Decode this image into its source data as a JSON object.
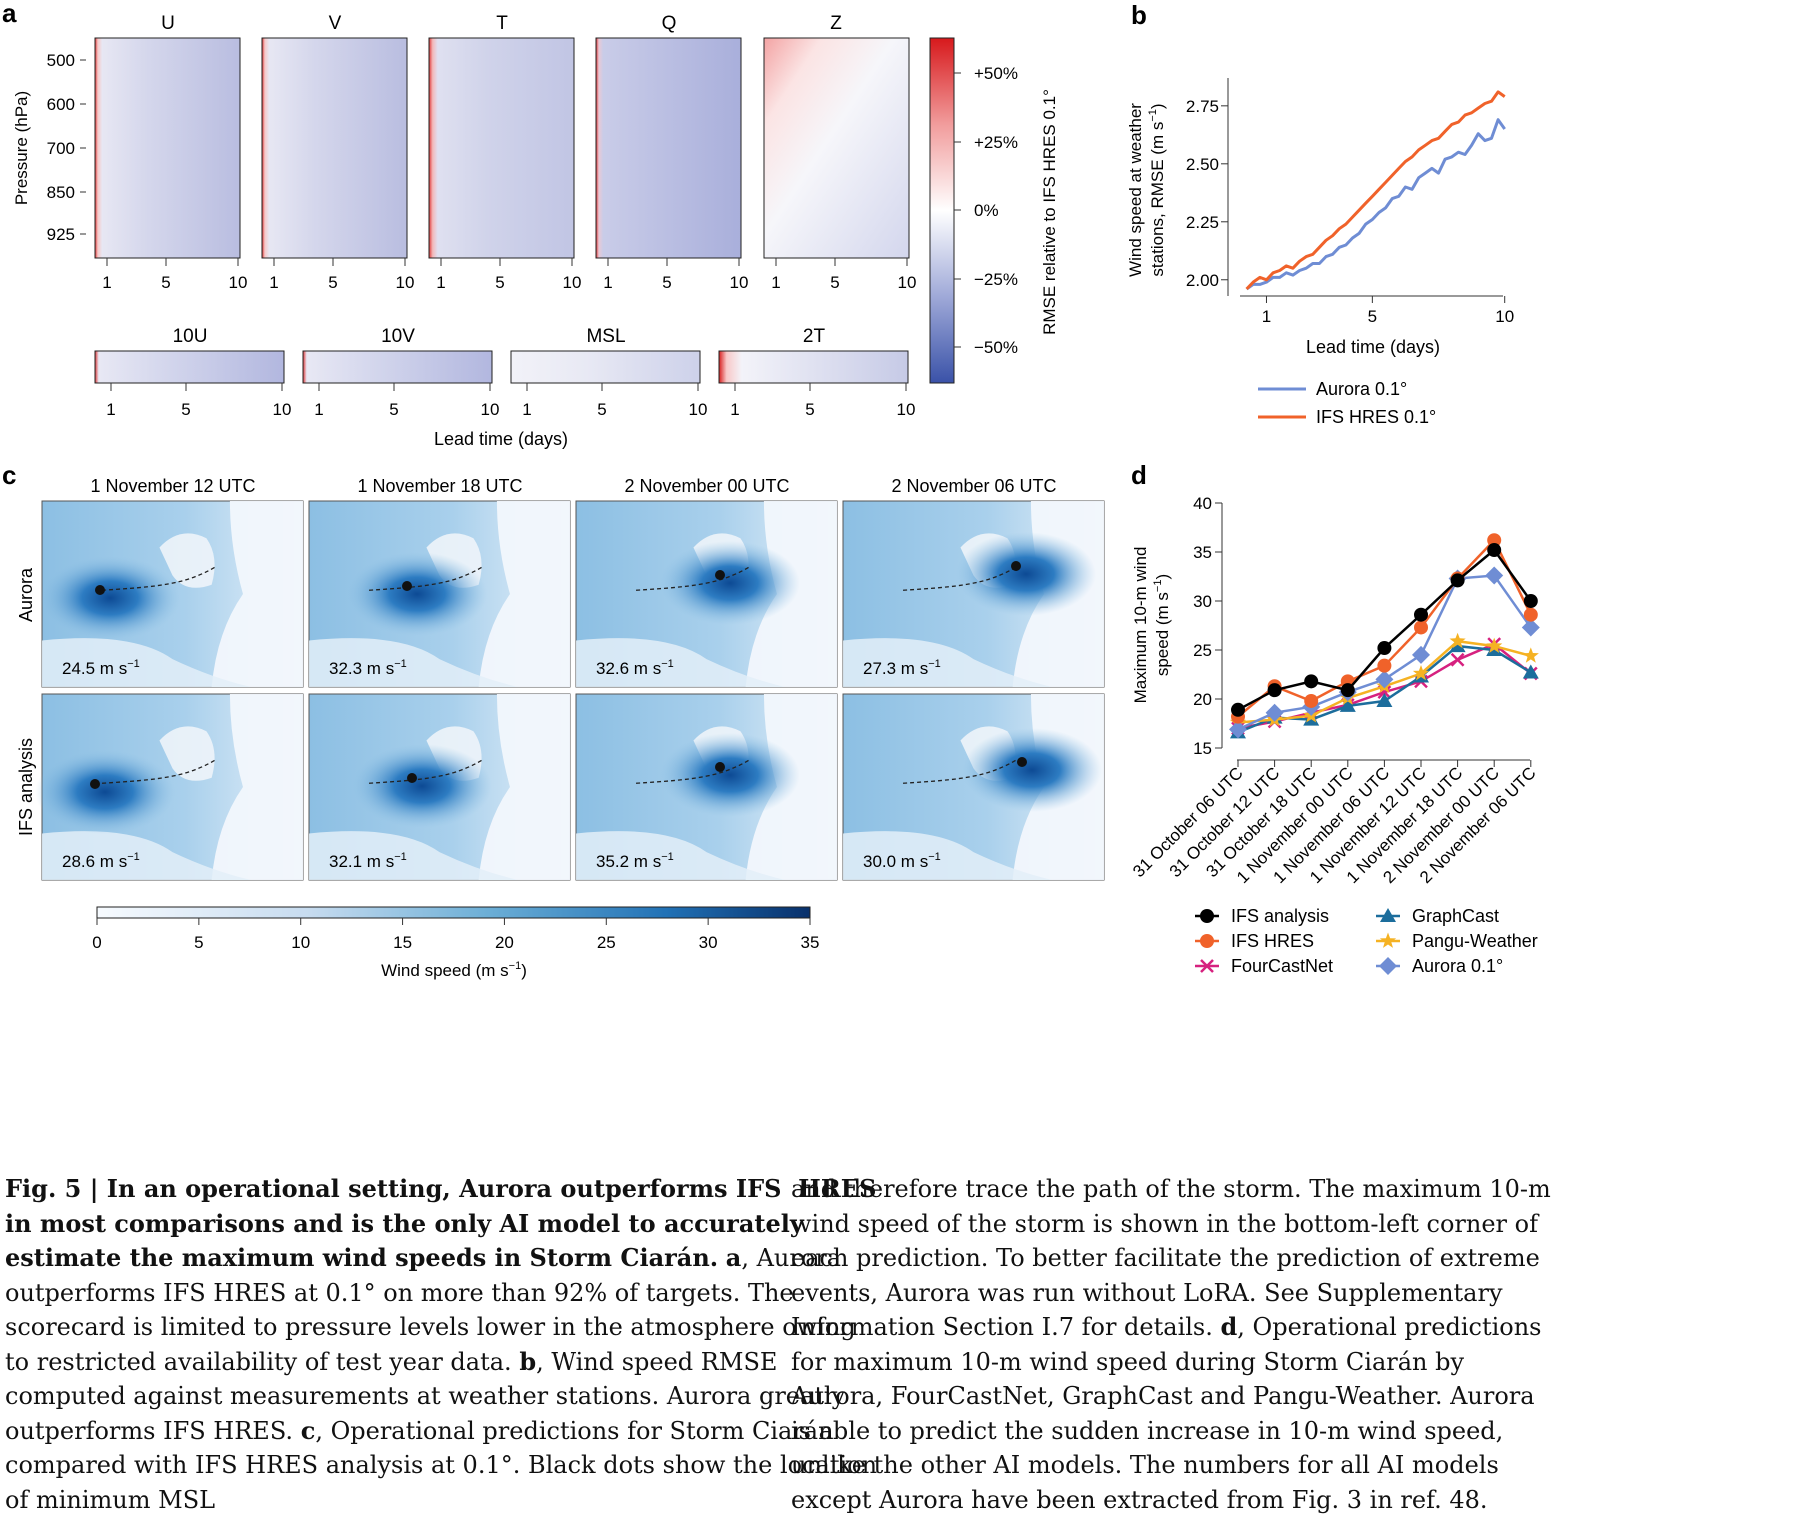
{
  "panel_labels": {
    "a": "a",
    "b": "b",
    "c": "c",
    "d": "d"
  },
  "panel_a": {
    "upper_titles": [
      "U",
      "V",
      "T",
      "Q",
      "Z"
    ],
    "lower_titles": [
      "10U",
      "10V",
      "MSL",
      "2T"
    ],
    "ylabel": "Pressure (hPa)",
    "yticks": [
      "500",
      "600",
      "700",
      "850",
      "925"
    ],
    "xticks": [
      "1",
      "5",
      "10"
    ],
    "xlabel": "Lead time (days)",
    "colorbar_ticks": [
      "+50%",
      "+25%",
      "0%",
      "−25%",
      "−50%"
    ],
    "colorbar_label": "RMSE relative to IFS HRES 0.1°",
    "colors": {
      "positive": "#d7191c",
      "zero": "#ffffff",
      "negative": "#3a52a8"
    }
  },
  "panel_c": {
    "col_titles": [
      "1 November 12 UTC",
      "1 November 18 UTC",
      "2 November 00 UTC",
      "2 November 06 UTC"
    ],
    "row_labels": [
      "Aurora",
      "IFS analysis"
    ],
    "aurora_values": [
      "24.5 m s",
      "32.3 m s",
      "32.6 m s",
      "27.3 m s"
    ],
    "ifs_values": [
      "28.6 m s",
      "32.1 m s",
      "35.2 m s",
      "30.0 m s"
    ],
    "unit_exp": "−1",
    "colorbar_ticks": [
      "0",
      "5",
      "10",
      "15",
      "20",
      "25",
      "30",
      "35"
    ],
    "colorbar_label": "Wind speed (m s",
    "colorbar_label_end": ")"
  },
  "chart_data": [
    {
      "type": "line",
      "panel": "b",
      "xlabel": "Lead time (days)",
      "ylabel_line1": "Wind speed at weather",
      "ylabel_line2": "stations, RMSE (m s",
      "ylabel_end": ")",
      "xlim": [
        0,
        10.2
      ],
      "ylim": [
        1.93,
        2.87
      ],
      "xticks": [
        1,
        5,
        10
      ],
      "yticks": [
        "2.00",
        "2.25",
        "2.50",
        "2.75"
      ],
      "series": [
        {
          "name": "Aurora 0.1°",
          "color": "#6f8dd4",
          "x": [
            0.25,
            0.5,
            0.75,
            1,
            1.25,
            1.5,
            1.75,
            2,
            2.25,
            2.5,
            2.75,
            3,
            3.25,
            3.5,
            3.75,
            4,
            4.25,
            4.5,
            4.75,
            5,
            5.25,
            5.5,
            5.75,
            6,
            6.25,
            6.5,
            6.75,
            7,
            7.25,
            7.5,
            7.75,
            8,
            8.25,
            8.5,
            8.75,
            9,
            9.25,
            9.5,
            9.75,
            10
          ],
          "y": [
            1.96,
            1.98,
            1.98,
            1.99,
            2.01,
            2.01,
            2.03,
            2.02,
            2.04,
            2.05,
            2.07,
            2.07,
            2.1,
            2.11,
            2.14,
            2.15,
            2.18,
            2.2,
            2.24,
            2.26,
            2.29,
            2.31,
            2.35,
            2.36,
            2.4,
            2.39,
            2.44,
            2.46,
            2.48,
            2.46,
            2.52,
            2.53,
            2.55,
            2.54,
            2.58,
            2.63,
            2.6,
            2.61,
            2.69,
            2.65
          ]
        },
        {
          "name": "IFS HRES 0.1°",
          "color": "#f0622a",
          "x": [
            0.25,
            0.5,
            0.75,
            1,
            1.25,
            1.5,
            1.75,
            2,
            2.25,
            2.5,
            2.75,
            3,
            3.25,
            3.5,
            3.75,
            4,
            4.25,
            4.5,
            4.75,
            5,
            5.25,
            5.5,
            5.75,
            6,
            6.25,
            6.5,
            6.75,
            7,
            7.25,
            7.5,
            7.75,
            8,
            8.25,
            8.5,
            8.75,
            9,
            9.25,
            9.5,
            9.75,
            10
          ],
          "y": [
            1.96,
            1.99,
            2.01,
            2.0,
            2.03,
            2.04,
            2.06,
            2.05,
            2.08,
            2.1,
            2.11,
            2.14,
            2.17,
            2.19,
            2.22,
            2.24,
            2.27,
            2.3,
            2.33,
            2.36,
            2.39,
            2.42,
            2.45,
            2.48,
            2.51,
            2.53,
            2.56,
            2.58,
            2.6,
            2.61,
            2.64,
            2.67,
            2.68,
            2.71,
            2.72,
            2.74,
            2.76,
            2.77,
            2.81,
            2.79
          ]
        }
      ]
    },
    {
      "type": "line",
      "panel": "d",
      "ylabel_line1": "Maximum 10-m wind",
      "ylabel_line2": "speed (m s",
      "ylabel_end": ")",
      "ylim": [
        15,
        40
      ],
      "yticks": [
        "15",
        "20",
        "25",
        "30",
        "35",
        "40"
      ],
      "categories": [
        "31 October 06 UTC",
        "31 October 12 UTC",
        "31 October 18 UTC",
        "1 November 00 UTC",
        "1 November 06 UTC",
        "1 November 12 UTC",
        "1 November 18 UTC",
        "2 November 00 UTC",
        "2 November 06 UTC"
      ],
      "series": [
        {
          "name": "IFS analysis",
          "color": "#000000",
          "marker": "circle",
          "values": [
            18.9,
            20.9,
            21.8,
            20.9,
            25.2,
            28.6,
            32.1,
            35.2,
            30.0
          ]
        },
        {
          "name": "IFS HRES",
          "color": "#f0622a",
          "marker": "circle",
          "values": [
            18.2,
            21.3,
            19.8,
            21.8,
            23.4,
            27.3,
            32.3,
            36.2,
            28.6
          ]
        },
        {
          "name": "FourCastNet",
          "color": "#d6217f",
          "marker": "x",
          "values": [
            17.0,
            17.7,
            18.6,
            19.4,
            20.7,
            21.8,
            24.0,
            25.6,
            22.6
          ]
        },
        {
          "name": "GraphCast",
          "color": "#1c6d9c",
          "marker": "triangle",
          "values": [
            16.6,
            18.1,
            17.9,
            19.3,
            19.8,
            22.3,
            25.4,
            25.0,
            22.7
          ]
        },
        {
          "name": "Pangu-Weather",
          "color": "#f5b223",
          "marker": "star",
          "values": [
            17.6,
            17.9,
            18.3,
            20.1,
            21.3,
            22.6,
            25.9,
            25.4,
            24.4
          ]
        },
        {
          "name": "Aurora 0.1°",
          "color": "#6f8dd4",
          "marker": "diamond",
          "values": [
            16.9,
            18.6,
            19.2,
            20.7,
            22.0,
            24.5,
            32.3,
            32.6,
            27.3
          ]
        }
      ]
    }
  ],
  "caption": {
    "left_head": "Fig. 5 | In an operational setting, Aurora outperforms IFS  HRES in most comparisons and is the only AI model to accurately estimate the maximum wind speeds in Storm Ciarán.",
    "left_a_letter": "a",
    "left_a_text": ", Aurora outperforms IFS HRES at 0.1° on more than 92% of targets. The scorecard is limited to pressure levels lower in the atmosphere owing to restricted availability of test year data.",
    "left_b_letter": "b",
    "left_b_text": ", Wind speed RMSE computed against measurements at weather stations. Aurora greatly outperforms IFS HRES.",
    "left_c_letter": "c",
    "left_c_text": ", Operational predictions for Storm Ciarán compared with IFS HRES analysis at 0.1°. Black dots show the location of minimum MSL",
    "right_text1": "and therefore trace the path of the storm. The maximum 10-m wind speed of the storm is shown in the bottom-left corner of each prediction. To better facilitate the prediction of extreme events, Aurora was run without LoRA. See Supplementary Information Section I.7 for details.",
    "right_d_letter": "d",
    "right_text2": ", Operational predictions for maximum 10-m wind speed during Storm Ciarán by Aurora, FourCastNet, GraphCast and Pangu-Weather. Aurora is able to predict the sudden increase in 10-m wind speed, unlike the other AI models. The numbers for all AI models except Aurora have been extracted from Fig. 3 in ref. 48."
  }
}
